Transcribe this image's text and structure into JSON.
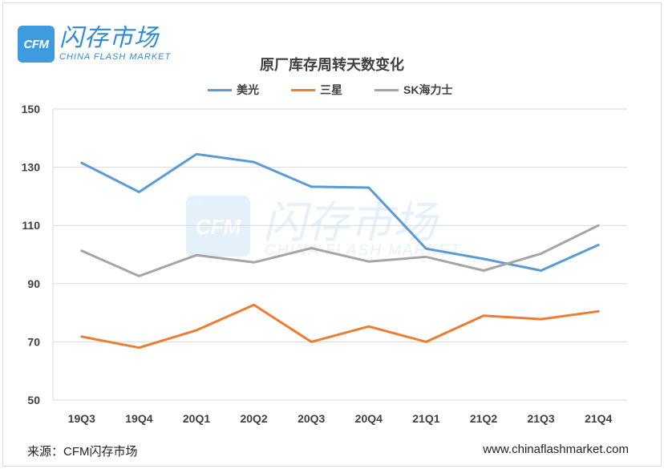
{
  "logo": {
    "badge": "CFM",
    "cn_name": "闪存市场",
    "en_name": "CHINA FLASH MARKET"
  },
  "footer": {
    "source": "来源：CFM闪存市场",
    "website": "www.chinaflashmarket.com"
  },
  "colors": {
    "micron": "#5b9bd5",
    "samsung": "#ed7d31",
    "skhynix": "#a5a5a5",
    "grid": "#d9d9d9",
    "logo": "#3f9be0"
  },
  "chart_data": {
    "type": "line",
    "title": "原厂库存周转天数变化",
    "xlabel": "",
    "ylabel": "",
    "ylim": [
      50,
      150
    ],
    "yticks": [
      50,
      70,
      90,
      110,
      130,
      150
    ],
    "categories": [
      "19Q3",
      "19Q4",
      "20Q1",
      "20Q2",
      "20Q3",
      "20Q4",
      "21Q1",
      "21Q2",
      "21Q3",
      "21Q4"
    ],
    "series": [
      {
        "name": "美光",
        "color": "#5b9bd5",
        "values": [
          131.5,
          121.5,
          134.5,
          131.8,
          123.3,
          123.0,
          102.0,
          98.5,
          94.5,
          103.3
        ]
      },
      {
        "name": "三星",
        "color": "#ed7d31",
        "values": [
          71.8,
          68.0,
          74.0,
          82.7,
          70.0,
          75.3,
          70.0,
          79.0,
          77.8,
          80.5
        ]
      },
      {
        "name": "SK海力士",
        "color": "#a5a5a5",
        "values": [
          101.3,
          92.6,
          99.8,
          97.3,
          102.2,
          97.6,
          99.2,
          94.5,
          100.3,
          110.0
        ]
      }
    ],
    "legend_position": "top-center",
    "grid": true
  }
}
